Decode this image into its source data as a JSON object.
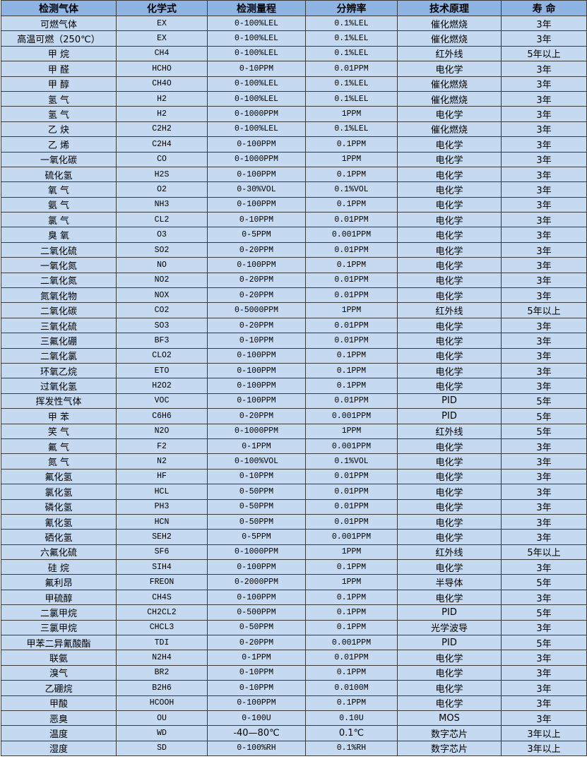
{
  "colors": {
    "header_bg": "#8DB4E2",
    "row_bg": "#C5D9F1",
    "border": "#3a3a3a"
  },
  "headers": [
    "检测气体",
    "化学式",
    "检测量程",
    "分辨率",
    "技术原理",
    "寿 命"
  ],
  "rows": [
    [
      "可燃气体",
      "EX",
      "0-100%LEL",
      "0.1%LEL",
      "催化燃烧",
      "3年"
    ],
    [
      "高温可燃（250℃）",
      "EX",
      "0-100%LEL",
      "0.1%LEL",
      "催化燃烧",
      "3年"
    ],
    [
      "甲 烷",
      "CH4",
      "0-100%LEL",
      "0.1%LEL",
      "红外线",
      "5年以上"
    ],
    [
      "甲 醛",
      "HCHO",
      "0-10PPM",
      "0.01PPM",
      "电化学",
      "3年"
    ],
    [
      "甲 醇",
      "CH4O",
      "0-100%LEL",
      "0.1%LEL",
      "催化燃烧",
      "3年"
    ],
    [
      "氢 气",
      "H2",
      "0-100%LEL",
      "0.1%LEL",
      "催化燃烧",
      "3年"
    ],
    [
      "氢 气",
      "H2",
      "0-1000PPM",
      "1PPM",
      "电化学",
      "3年"
    ],
    [
      "乙 炔",
      "C2H2",
      "0-100%LEL",
      "0.1%LEL",
      "催化燃烧",
      "3年"
    ],
    [
      "乙 烯",
      "C2H4",
      "0-100PPM",
      "0.1PPM",
      "电化学",
      "3年"
    ],
    [
      "一氧化碳",
      "CO",
      "0-1000PPM",
      "1PPM",
      "电化学",
      "3年"
    ],
    [
      "硫化氢",
      "H2S",
      "0-100PPM",
      "0.1PPM",
      "电化学",
      "3年"
    ],
    [
      "氧 气",
      "O2",
      "0-30%VOL",
      "0.1%VOL",
      "电化学",
      "3年"
    ],
    [
      "氨 气",
      "NH3",
      "0-100PPM",
      "0.1PPM",
      "电化学",
      "3年"
    ],
    [
      "氯 气",
      "CL2",
      "0-10PPM",
      "0.01PPM",
      "电化学",
      "3年"
    ],
    [
      "臭 氧",
      "O3",
      "0-5PPM",
      "0.001PPM",
      "电化学",
      "3年"
    ],
    [
      "二氧化硫",
      "SO2",
      "0-20PPM",
      "0.01PPM",
      "电化学",
      "3年"
    ],
    [
      "一氧化氮",
      "NO",
      "0-100PPM",
      "0.1PPM",
      "电化学",
      "3年"
    ],
    [
      "二氧化氮",
      "NO2",
      "0-20PPM",
      "0.01PPM",
      "电化学",
      "3年"
    ],
    [
      "氮氧化物",
      "NOX",
      "0-20PPM",
      "0.01PPM",
      "电化学",
      "3年"
    ],
    [
      "二氧化碳",
      "CO2",
      "0-5000PPM",
      "1PPM",
      "红外线",
      "5年以上"
    ],
    [
      "三氧化硫",
      "SO3",
      "0-20PPM",
      "0.01PPM",
      "电化学",
      "3年"
    ],
    [
      "三氟化硼",
      "BF3",
      "0-10PPM",
      "0.01PPM",
      "电化学",
      "3年"
    ],
    [
      "二氧化氯",
      "CLO2",
      "0-100PPM",
      "0.1PPM",
      "电化学",
      "3年"
    ],
    [
      "环氧乙烷",
      "ETO",
      "0-100PPM",
      "0.1PPM",
      "电化学",
      "3年"
    ],
    [
      "过氧化氢",
      "H2O2",
      "0-100PPM",
      "0.1PPM",
      "电化学",
      "3年"
    ],
    [
      "挥发性气体",
      "VOC",
      "0-100PPM",
      "0.01PPM",
      "PID",
      "5年"
    ],
    [
      "甲 苯",
      "C6H6",
      "0-20PPM",
      "0.001PPM",
      "PID",
      "5年"
    ],
    [
      "笑 气",
      "N2O",
      "0-1000PPM",
      "1PPM",
      "红外线",
      "5年"
    ],
    [
      "氟 气",
      "F2",
      "0-1PPM",
      "0.001PPM",
      "电化学",
      "3年"
    ],
    [
      "氮 气",
      "N2",
      "0-100%VOL",
      "0.1%VOL",
      "电化学",
      "3年"
    ],
    [
      "氟化氢",
      "HF",
      "0-10PPM",
      "0.01PPM",
      "电化学",
      "3年"
    ],
    [
      "氯化氢",
      "HCL",
      "0-50PPM",
      "0.01PPM",
      "电化学",
      "3年"
    ],
    [
      "磷化氢",
      "PH3",
      "0-50PPM",
      "0.01PPM",
      "电化学",
      "3年"
    ],
    [
      "氰化氢",
      "HCN",
      "0-50PPM",
      "0.01PPM",
      "电化学",
      "3年"
    ],
    [
      "硒化氢",
      "SEH2",
      "0-5PPM",
      "0.001PPM",
      "电化学",
      "3年"
    ],
    [
      "六氟化硫",
      "SF6",
      "0-1000PPM",
      "1PPM",
      "红外线",
      "5年以上"
    ],
    [
      "硅 烷",
      "SIH4",
      "0-100PPM",
      "0.1PPM",
      "电化学",
      "3年"
    ],
    [
      "氟利昂",
      "FREON",
      "0-2000PPM",
      "1PPM",
      "半导体",
      "5年"
    ],
    [
      "甲硫醇",
      "CH4S",
      "0-100PPM",
      "0.1PPM",
      "电化学",
      "3年"
    ],
    [
      "二氯甲烷",
      "CH2CL2",
      "0-500PPM",
      "0.1PPM",
      "PID",
      "5年"
    ],
    [
      "三氯甲烷",
      "CHCL3",
      "0-50PPM",
      "0.1PPM",
      "光学波导",
      "3年"
    ],
    [
      "甲苯二异氰酸酯",
      "TDI",
      "0-20PPM",
      "0.001PPM",
      "PID",
      "5年"
    ],
    [
      "联氨",
      "N2H4",
      "0-1PPM",
      "0.01PPM",
      "电化学",
      "3年"
    ],
    [
      "溴气",
      "BR2",
      "0-10PPM",
      "0.1PPM",
      "电化学",
      "3年"
    ],
    [
      "乙硼烷",
      "B2H6",
      "0-10PPM",
      "0.0100M",
      "电化学",
      "3年"
    ],
    [
      "甲酸",
      "HCOOH",
      "0-100PPM",
      "0.1PPM",
      "电化学",
      "3年"
    ],
    [
      "恶臭",
      "OU",
      "0-100U",
      "0.10U",
      "MOS",
      "3年"
    ],
    [
      "温度",
      "WD",
      "-40—80℃",
      "0.1℃",
      "数字芯片",
      "3年以上"
    ],
    [
      "湿度",
      "SD",
      "0-100%RH",
      "0.1%RH",
      "数字芯片",
      "3年以上"
    ]
  ]
}
